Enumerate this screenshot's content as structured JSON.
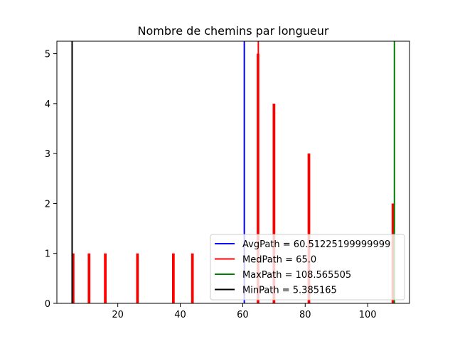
{
  "chart_data": {
    "type": "bar",
    "title": "Nombre de chemins par longueur",
    "xlabel": "",
    "ylabel": "",
    "xlim": [
      0.5,
      113.4
    ],
    "ylim": [
      0,
      5.25
    ],
    "xticks": [
      20,
      40,
      60,
      80,
      100
    ],
    "yticks": [
      0,
      1,
      2,
      3,
      4,
      5
    ],
    "grid": false,
    "bar_color": "#ff0000",
    "bar_width": 0.85,
    "bars": [
      {
        "x": 5.7,
        "y": 1
      },
      {
        "x": 10.8,
        "y": 1
      },
      {
        "x": 16.0,
        "y": 1
      },
      {
        "x": 26.3,
        "y": 1
      },
      {
        "x": 37.8,
        "y": 1
      },
      {
        "x": 43.9,
        "y": 1
      },
      {
        "x": 64.9,
        "y": 5
      },
      {
        "x": 70.0,
        "y": 4
      },
      {
        "x": 81.2,
        "y": 3
      },
      {
        "x": 108.1,
        "y": 2
      }
    ],
    "lines": [
      {
        "name": "AvgPath = 60.51225199999999",
        "x": 60.51225199999999,
        "color": "#0000ff"
      },
      {
        "name": "MedPath = 65.0",
        "x": 65.0,
        "color": "#ff0000"
      },
      {
        "name": "MaxPath = 108.565505",
        "x": 108.565505,
        "color": "#008000"
      },
      {
        "name": "MinPath = 5.385165",
        "x": 5.385165,
        "color": "#000000"
      }
    ],
    "legend_position": "lower-right"
  }
}
